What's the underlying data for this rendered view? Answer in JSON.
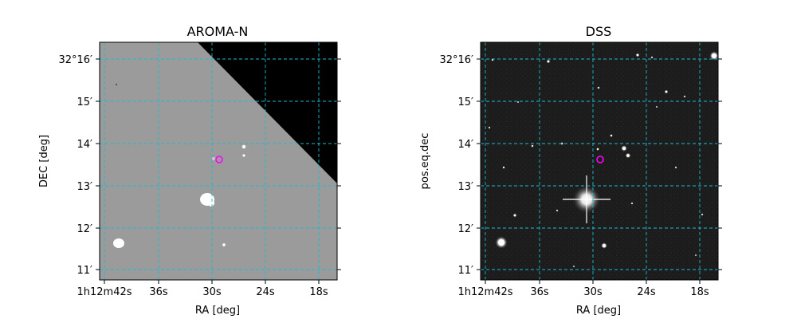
{
  "panels": [
    {
      "title": "AROMA-N",
      "xlabel": "RA [deg]",
      "ylabel": "DEC [deg]",
      "x_ticks": [
        "1h12m42s",
        "36s",
        "30s",
        "24s",
        "18s"
      ],
      "y_ticks": [
        "32°16′",
        "15′",
        "14′",
        "13′",
        "12′",
        "11′"
      ],
      "image_style": "gray-with-black-corner"
    },
    {
      "title": "DSS",
      "xlabel": "RA [deg]",
      "ylabel": "pos.eq.dec",
      "x_ticks": [
        "1h12m42s",
        "36s",
        "30s",
        "24s",
        "18s"
      ],
      "y_ticks": [
        "32°16′",
        "15′",
        "14′",
        "13′",
        "12′",
        "11′"
      ],
      "image_style": "dark-starfield"
    }
  ],
  "colors": {
    "grid": "#17becf",
    "marker": "#ff00ff",
    "background_gray": "#9b9b9b",
    "sky_dark": "#1c1c1c"
  }
}
